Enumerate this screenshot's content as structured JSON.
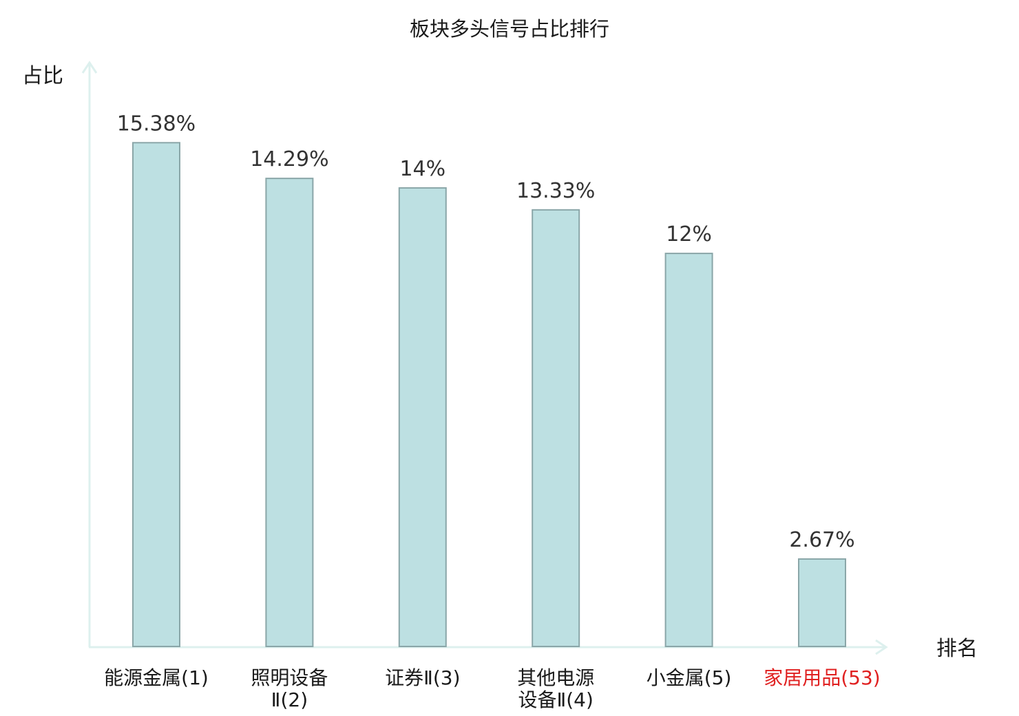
{
  "chart_data": {
    "type": "bar",
    "title": "板块多头信号占比排行",
    "ylabel": "占比",
    "xlabel": "排名",
    "ylim": [
      0,
      16.5
    ],
    "grid": false,
    "categories": [
      [
        "能源金属(1)"
      ],
      [
        "照明设备",
        "Ⅱ(2)"
      ],
      [
        "证券Ⅱ(3)"
      ],
      [
        "其他电源",
        "设备Ⅱ(4)"
      ],
      [
        "小金属(5)"
      ],
      [
        "家居用品(53)"
      ]
    ],
    "values": [
      15.38,
      14.29,
      14,
      13.33,
      12,
      2.67
    ],
    "value_labels": [
      "15.38%",
      "14.29%",
      "14%",
      "13.33%",
      "12%",
      "2.67%"
    ],
    "highlight_index": 5,
    "colors": {
      "bar_fill": "#bde0e2",
      "bar_stroke": "#8aa6a8",
      "axis": "#ddf0ee",
      "highlight_text": "#e02020"
    }
  }
}
